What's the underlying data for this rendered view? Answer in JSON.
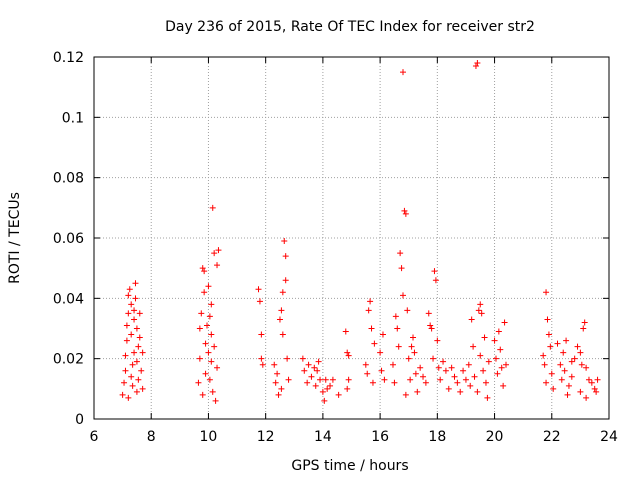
{
  "chart_data": {
    "type": "scatter",
    "title": "Day 236 of 2015, Rate Of TEC Index for receiver str2",
    "xlabel": "GPS time / hours",
    "ylabel": "ROTI / TECUs",
    "xlim": [
      6,
      24
    ],
    "ylim": [
      0,
      0.12
    ],
    "xticks": [
      6,
      8,
      10,
      12,
      14,
      16,
      18,
      20,
      22,
      24
    ],
    "xtick_labels": [
      "6",
      "8",
      "10",
      "12",
      "14",
      "16",
      "18",
      "20",
      "22",
      "24"
    ],
    "yticks": [
      0,
      0.02,
      0.04,
      0.06,
      0.08,
      0.1,
      0.12
    ],
    "ytick_labels": [
      "0",
      "0.02",
      "0.04",
      "0.06",
      "0.08",
      "0.1",
      "0.12"
    ],
    "grid": true,
    "marker": "plus",
    "color": "#ff0000",
    "series": [
      {
        "name": "ROTI",
        "points": [
          [
            7.0,
            0.008
          ],
          [
            7.05,
            0.012
          ],
          [
            7.1,
            0.016
          ],
          [
            7.1,
            0.021
          ],
          [
            7.15,
            0.026
          ],
          [
            7.15,
            0.031
          ],
          [
            7.2,
            0.035
          ],
          [
            7.2,
            0.041
          ],
          [
            7.25,
            0.043
          ],
          [
            7.3,
            0.038
          ],
          [
            7.3,
            0.028
          ],
          [
            7.35,
            0.018
          ],
          [
            7.35,
            0.011
          ],
          [
            7.4,
            0.022
          ],
          [
            7.4,
            0.033
          ],
          [
            7.45,
            0.045
          ],
          [
            7.45,
            0.04
          ],
          [
            7.5,
            0.03
          ],
          [
            7.5,
            0.019
          ],
          [
            7.55,
            0.013
          ],
          [
            7.55,
            0.024
          ],
          [
            7.6,
            0.035
          ],
          [
            7.6,
            0.027
          ],
          [
            7.65,
            0.016
          ],
          [
            7.7,
            0.022
          ],
          [
            7.7,
            0.01
          ],
          [
            7.2,
            0.007
          ],
          [
            7.3,
            0.014
          ],
          [
            7.5,
            0.009
          ],
          [
            7.4,
            0.036
          ],
          [
            9.65,
            0.012
          ],
          [
            9.7,
            0.02
          ],
          [
            9.7,
            0.03
          ],
          [
            9.75,
            0.035
          ],
          [
            9.8,
            0.05
          ],
          [
            9.85,
            0.049
          ],
          [
            9.85,
            0.042
          ],
          [
            9.9,
            0.025
          ],
          [
            9.9,
            0.015
          ],
          [
            9.95,
            0.031
          ],
          [
            10.0,
            0.044
          ],
          [
            10.0,
            0.022
          ],
          [
            10.05,
            0.034
          ],
          [
            10.05,
            0.013
          ],
          [
            10.1,
            0.028
          ],
          [
            10.1,
            0.019
          ],
          [
            10.15,
            0.009
          ],
          [
            10.15,
            0.07
          ],
          [
            10.2,
            0.055
          ],
          [
            10.2,
            0.024
          ],
          [
            10.25,
            0.006
          ],
          [
            10.3,
            0.051
          ],
          [
            10.3,
            0.017
          ],
          [
            10.35,
            0.056
          ],
          [
            9.8,
            0.008
          ],
          [
            10.1,
            0.038
          ],
          [
            11.75,
            0.043
          ],
          [
            11.8,
            0.039
          ],
          [
            11.85,
            0.028
          ],
          [
            11.85,
            0.02
          ],
          [
            11.9,
            0.018
          ],
          [
            12.3,
            0.018
          ],
          [
            12.35,
            0.012
          ],
          [
            12.4,
            0.015
          ],
          [
            12.45,
            0.008
          ],
          [
            12.5,
            0.033
          ],
          [
            12.55,
            0.036
          ],
          [
            12.6,
            0.028
          ],
          [
            12.6,
            0.042
          ],
          [
            12.65,
            0.059
          ],
          [
            12.7,
            0.054
          ],
          [
            12.7,
            0.046
          ],
          [
            12.75,
            0.02
          ],
          [
            12.8,
            0.013
          ],
          [
            12.55,
            0.01
          ],
          [
            13.3,
            0.02
          ],
          [
            13.35,
            0.016
          ],
          [
            13.45,
            0.012
          ],
          [
            13.5,
            0.018
          ],
          [
            13.6,
            0.014
          ],
          [
            13.7,
            0.017
          ],
          [
            13.75,
            0.011
          ],
          [
            13.8,
            0.016
          ],
          [
            13.85,
            0.019
          ],
          [
            13.9,
            0.013
          ],
          [
            14.0,
            0.009
          ],
          [
            14.05,
            0.006
          ],
          [
            14.1,
            0.013
          ],
          [
            14.15,
            0.01
          ],
          [
            14.25,
            0.011
          ],
          [
            14.35,
            0.013
          ],
          [
            14.55,
            0.008
          ],
          [
            14.8,
            0.029
          ],
          [
            14.85,
            0.022
          ],
          [
            14.9,
            0.021
          ],
          [
            14.85,
            0.01
          ],
          [
            14.9,
            0.013
          ],
          [
            15.5,
            0.018
          ],
          [
            15.55,
            0.015
          ],
          [
            15.6,
            0.036
          ],
          [
            15.65,
            0.039
          ],
          [
            15.7,
            0.03
          ],
          [
            15.75,
            0.012
          ],
          [
            15.8,
            0.025
          ],
          [
            16.0,
            0.022
          ],
          [
            16.05,
            0.016
          ],
          [
            16.1,
            0.028
          ],
          [
            16.15,
            0.013
          ],
          [
            16.45,
            0.018
          ],
          [
            16.5,
            0.012
          ],
          [
            16.55,
            0.034
          ],
          [
            16.6,
            0.03
          ],
          [
            16.65,
            0.024
          ],
          [
            16.7,
            0.055
          ],
          [
            16.75,
            0.05
          ],
          [
            16.8,
            0.041
          ],
          [
            16.8,
            0.115
          ],
          [
            16.85,
            0.069
          ],
          [
            16.9,
            0.068
          ],
          [
            16.95,
            0.036
          ],
          [
            17.0,
            0.02
          ],
          [
            17.05,
            0.013
          ],
          [
            17.1,
            0.024
          ],
          [
            17.15,
            0.027
          ],
          [
            17.2,
            0.022
          ],
          [
            17.25,
            0.015
          ],
          [
            17.3,
            0.009
          ],
          [
            16.9,
            0.008
          ],
          [
            17.4,
            0.017
          ],
          [
            17.5,
            0.014
          ],
          [
            17.6,
            0.012
          ],
          [
            17.7,
            0.035
          ],
          [
            17.75,
            0.031
          ],
          [
            17.8,
            0.03
          ],
          [
            17.85,
            0.02
          ],
          [
            17.9,
            0.049
          ],
          [
            17.95,
            0.046
          ],
          [
            18.0,
            0.026
          ],
          [
            18.05,
            0.017
          ],
          [
            18.1,
            0.013
          ],
          [
            18.2,
            0.019
          ],
          [
            18.3,
            0.016
          ],
          [
            18.4,
            0.01
          ],
          [
            18.5,
            0.017
          ],
          [
            18.6,
            0.014
          ],
          [
            18.7,
            0.012
          ],
          [
            18.8,
            0.009
          ],
          [
            18.9,
            0.016
          ],
          [
            19.0,
            0.013
          ],
          [
            19.1,
            0.018
          ],
          [
            19.15,
            0.011
          ],
          [
            19.2,
            0.033
          ],
          [
            19.25,
            0.024
          ],
          [
            19.3,
            0.014
          ],
          [
            19.35,
            0.117
          ],
          [
            19.4,
            0.118
          ],
          [
            19.4,
            0.009
          ],
          [
            19.45,
            0.036
          ],
          [
            19.5,
            0.038
          ],
          [
            19.5,
            0.021
          ],
          [
            19.55,
            0.035
          ],
          [
            19.6,
            0.016
          ],
          [
            19.65,
            0.027
          ],
          [
            19.7,
            0.012
          ],
          [
            19.75,
            0.007
          ],
          [
            19.8,
            0.019
          ],
          [
            20.0,
            0.026
          ],
          [
            20.05,
            0.02
          ],
          [
            20.1,
            0.015
          ],
          [
            20.15,
            0.029
          ],
          [
            20.2,
            0.023
          ],
          [
            20.25,
            0.017
          ],
          [
            20.3,
            0.011
          ],
          [
            20.35,
            0.032
          ],
          [
            20.4,
            0.018
          ],
          [
            21.7,
            0.021
          ],
          [
            21.75,
            0.018
          ],
          [
            21.8,
            0.042
          ],
          [
            21.85,
            0.033
          ],
          [
            21.9,
            0.028
          ],
          [
            21.95,
            0.024
          ],
          [
            22.0,
            0.015
          ],
          [
            22.05,
            0.01
          ],
          [
            21.8,
            0.012
          ],
          [
            22.3,
            0.018
          ],
          [
            22.35,
            0.013
          ],
          [
            22.4,
            0.022
          ],
          [
            22.45,
            0.016
          ],
          [
            22.5,
            0.026
          ],
          [
            22.6,
            0.011
          ],
          [
            22.7,
            0.014
          ],
          [
            22.8,
            0.02
          ],
          [
            22.9,
            0.024
          ],
          [
            23.0,
            0.022
          ],
          [
            23.05,
            0.018
          ],
          [
            23.1,
            0.03
          ],
          [
            23.15,
            0.032
          ],
          [
            23.2,
            0.017
          ],
          [
            23.3,
            0.013
          ],
          [
            23.4,
            0.012
          ],
          [
            23.5,
            0.01
          ],
          [
            23.55,
            0.009
          ],
          [
            23.6,
            0.013
          ],
          [
            22.55,
            0.008
          ],
          [
            23.0,
            0.009
          ],
          [
            23.2,
            0.007
          ],
          [
            22.2,
            0.025
          ],
          [
            22.7,
            0.019
          ]
        ]
      }
    ]
  }
}
